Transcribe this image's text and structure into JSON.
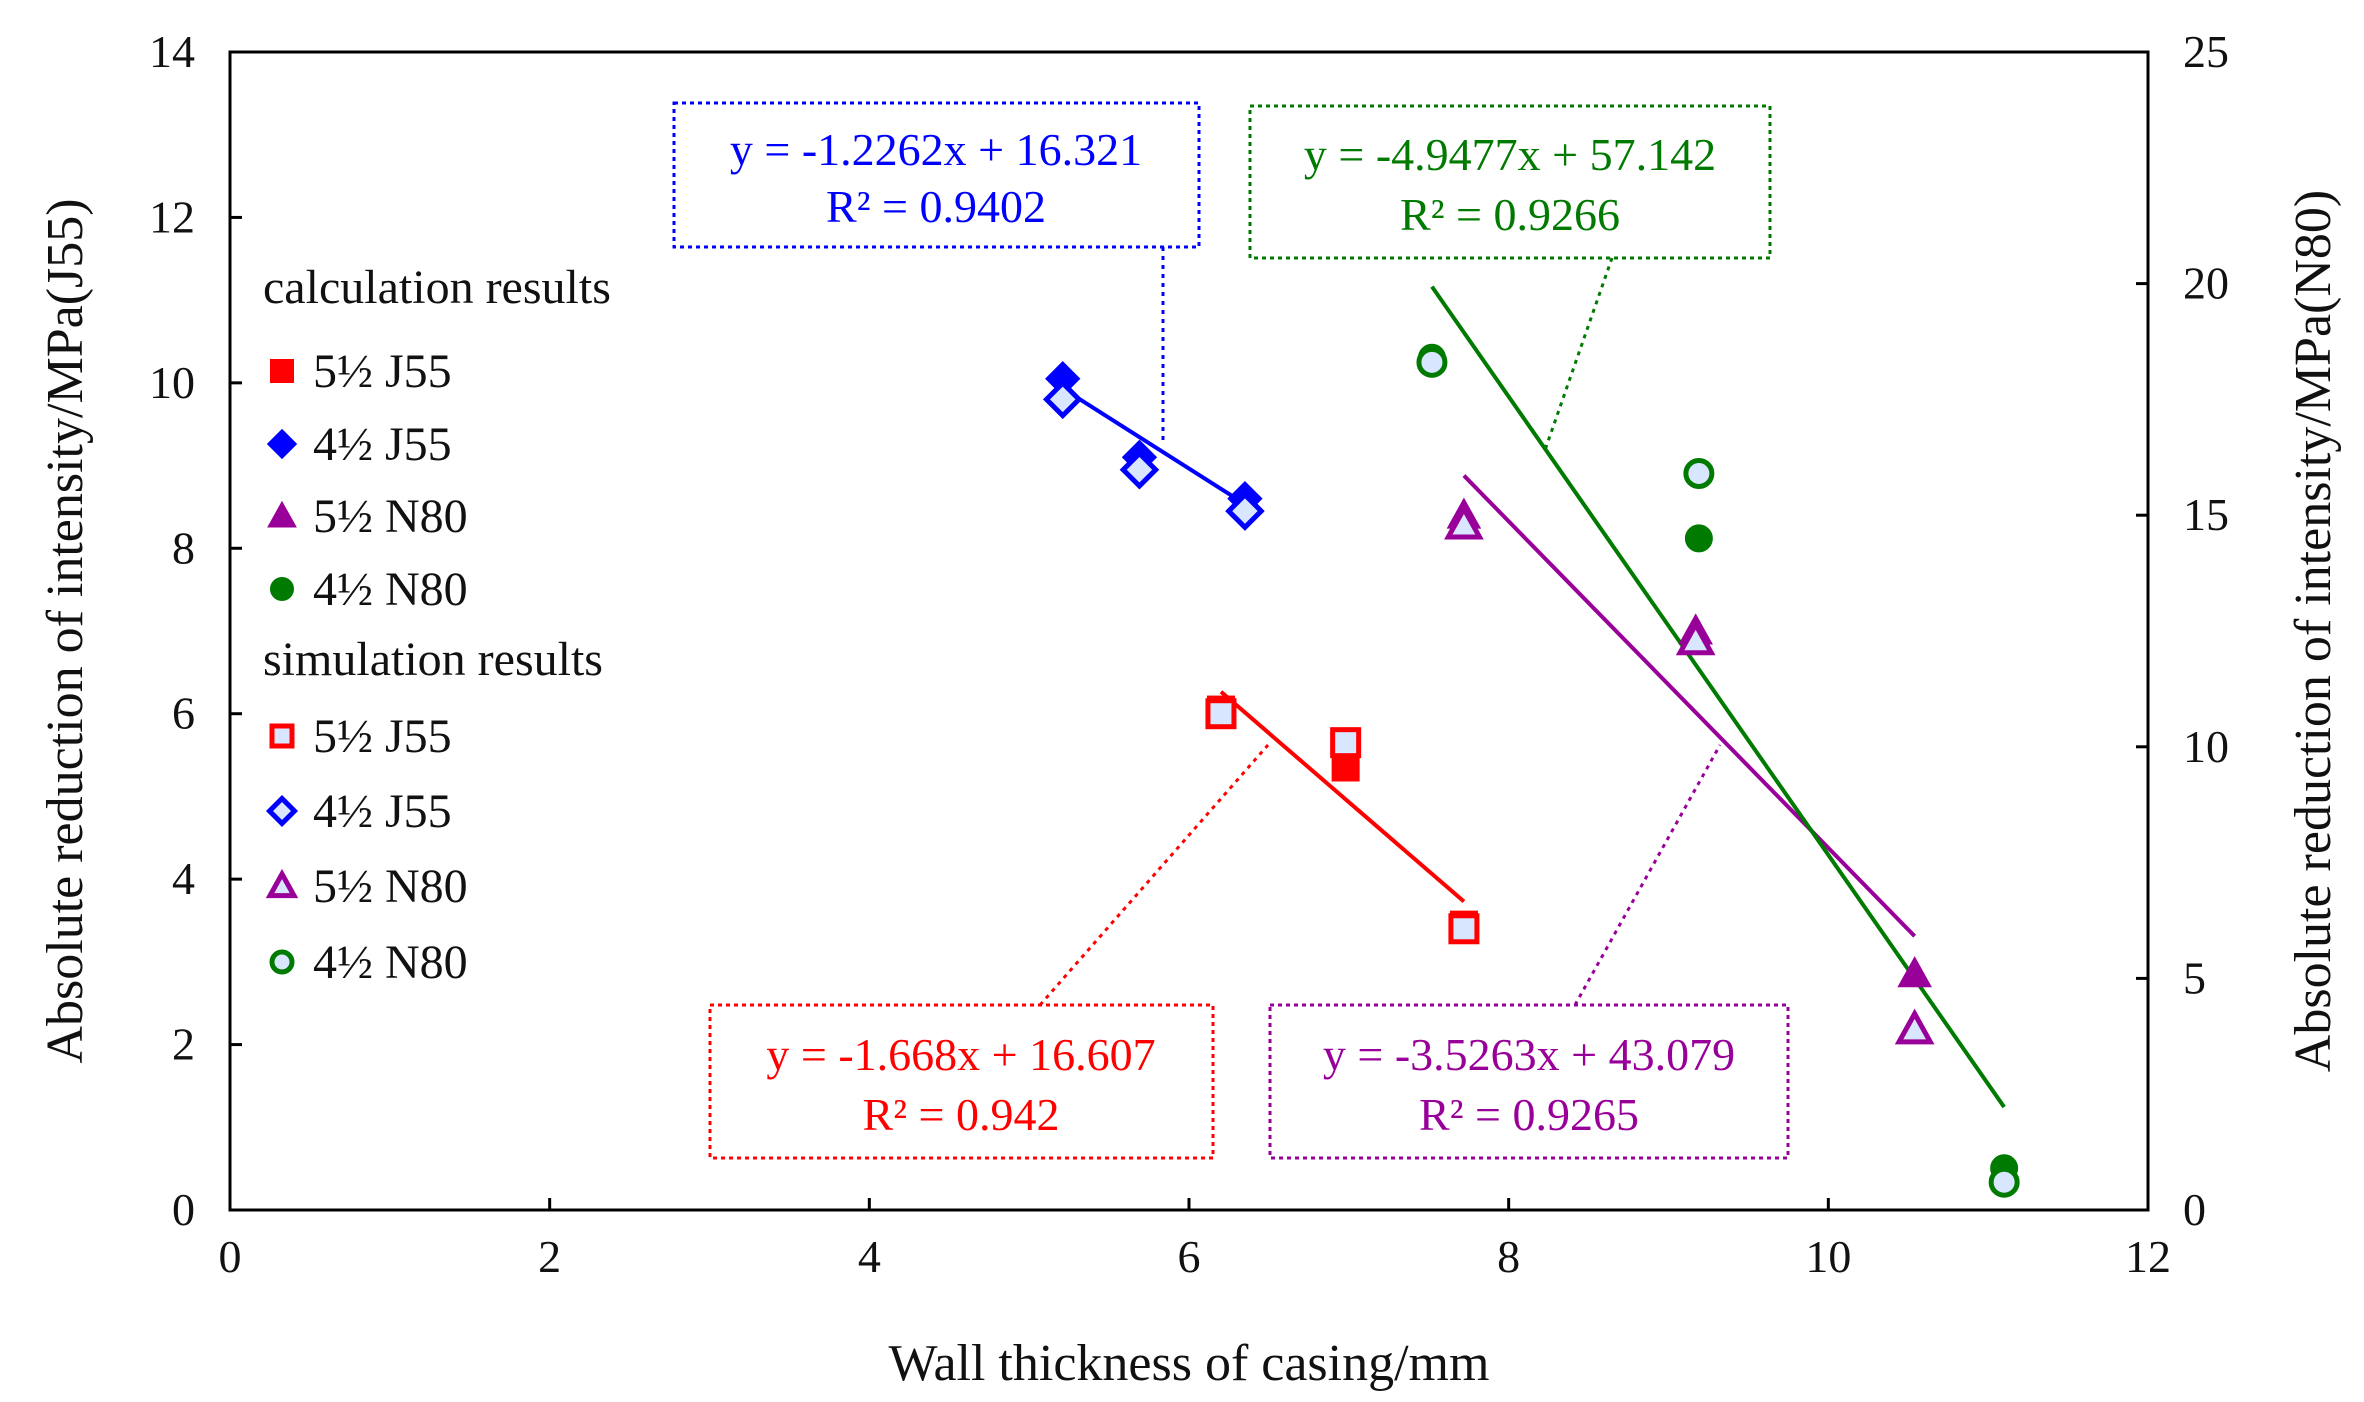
{
  "chart_data": {
    "type": "scatter",
    "xlabel": "Wall thickness of casing/mm",
    "ylabel_left": "Absolute reduction  of intensity/MPa(J55)",
    "ylabel_right": "Absolute reduction  of intensity/MPa(N80)",
    "xlim": [
      0,
      12
    ],
    "ylim_left": [
      0,
      14
    ],
    "ylim_right": [
      0,
      25
    ],
    "x_ticks": [
      "0",
      "2",
      "4",
      "6",
      "8",
      "10",
      "12"
    ],
    "y_left_ticks": [
      "0",
      "2",
      "4",
      "6",
      "8",
      "10",
      "12",
      "14"
    ],
    "y_right_ticks": [
      "0",
      "5",
      "10",
      "15",
      "20",
      "25"
    ],
    "legend": {
      "calc_heading": "calculation results",
      "sim_heading": "simulation results",
      "calc_labels": [
        "5½ J55",
        "4½ J55",
        "5½ N80",
        "4½ N80"
      ],
      "sim_labels": [
        "5½ J55",
        "4½ J55",
        "5½ N80",
        "4½ N80"
      ]
    },
    "colors": {
      "j55_55": "#ff0000",
      "j55_45": "#0000ff",
      "n80_55": "#990099",
      "n80_45": "#007a00"
    },
    "series": [
      {
        "name": "5½ J55 calculation",
        "axis": "left",
        "marker": "square",
        "filled": true,
        "color": "#ff0000",
        "x": [
          6.2,
          6.98,
          7.72
        ],
        "y": [
          6.05,
          5.35,
          3.45
        ]
      },
      {
        "name": "4½ J55 calculation",
        "axis": "left",
        "marker": "diamond",
        "filled": true,
        "color": "#0000ff",
        "x": [
          5.21,
          5.69,
          6.35
        ],
        "y": [
          10.05,
          9.1,
          8.6
        ]
      },
      {
        "name": "5½ N80 calculation",
        "axis": "right",
        "marker": "triangle",
        "filled": true,
        "color": "#990099",
        "x": [
          7.72,
          9.17,
          10.54
        ],
        "y": [
          15.0,
          12.5,
          5.1
        ]
      },
      {
        "name": "4½ N80 calculation",
        "axis": "right",
        "marker": "circle",
        "filled": true,
        "color": "#007a00",
        "x": [
          7.52,
          9.19,
          11.1
        ],
        "y": [
          18.4,
          14.5,
          0.9
        ]
      },
      {
        "name": "5½ J55 simulation",
        "axis": "left",
        "marker": "square",
        "filled": false,
        "color": "#ff0000",
        "x": [
          6.2,
          6.98,
          7.72
        ],
        "y": [
          6.0,
          5.65,
          3.4
        ]
      },
      {
        "name": "4½ J55 simulation",
        "axis": "left",
        "marker": "diamond",
        "filled": false,
        "color": "#0000ff",
        "x": [
          5.21,
          5.69,
          6.35
        ],
        "y": [
          9.8,
          8.95,
          8.45
        ]
      },
      {
        "name": "5½ N80 simulation",
        "axis": "right",
        "marker": "triangle",
        "filled": false,
        "color": "#990099",
        "x": [
          7.72,
          9.17,
          10.54
        ],
        "y": [
          14.8,
          12.3,
          3.9
        ]
      },
      {
        "name": "4½ N80 simulation",
        "axis": "right",
        "marker": "circle",
        "filled": false,
        "color": "#007a00",
        "x": [
          7.52,
          9.19,
          11.1
        ],
        "y": [
          18.3,
          15.9,
          0.6
        ]
      }
    ],
    "trendlines": [
      {
        "name": "5½ J55 fit",
        "axis": "left",
        "color": "#ff0000",
        "slope": -1.668,
        "intercept": 16.607,
        "x_range": [
          6.2,
          7.72
        ],
        "equation": "y = -1.668x + 16.607",
        "r2": "R² = 0.942"
      },
      {
        "name": "4½ J55 fit",
        "axis": "left",
        "color": "#0000ff",
        "slope": -1.2262,
        "intercept": 16.321,
        "x_range": [
          5.21,
          6.35
        ],
        "equation": "y = -1.2262x + 16.321",
        "r2": "R² = 0.9402"
      },
      {
        "name": "5½ N80 fit",
        "axis": "right",
        "color": "#990099",
        "slope": -3.5263,
        "intercept": 43.079,
        "x_range": [
          7.72,
          10.54
        ],
        "equation": "y = -3.5263x + 43.079",
        "r2": "R² = 0.9265"
      },
      {
        "name": "4½ N80 fit",
        "axis": "right",
        "color": "#007a00",
        "slope": -4.9477,
        "intercept": 57.142,
        "x_range": [
          7.52,
          11.1
        ],
        "equation": "y = -4.9477x + 57.142",
        "r2": "R² = 0.9266"
      }
    ]
  }
}
